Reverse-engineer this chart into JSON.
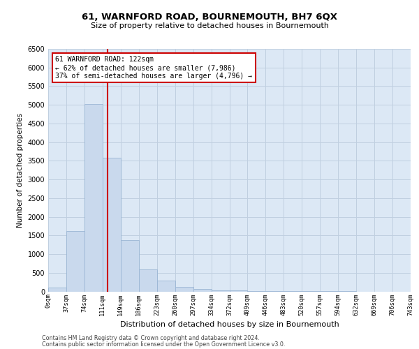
{
  "title_line1": "61, WARNFORD ROAD, BOURNEMOUTH, BH7 6QX",
  "title_line2": "Size of property relative to detached houses in Bournemouth",
  "xlabel": "Distribution of detached houses by size in Bournemouth",
  "ylabel": "Number of detached properties",
  "footer_line1": "Contains HM Land Registry data © Crown copyright and database right 2024.",
  "footer_line2": "Contains public sector information licensed under the Open Government Licence v3.0.",
  "bar_color": "#c9d9ed",
  "bar_edge_color": "#9ab5d4",
  "grid_color": "#c0cfe0",
  "background_color": "#dce8f5",
  "annotation_box_color": "#cc0000",
  "vline_color": "#cc0000",
  "property_size": 122,
  "annotation_text_line1": "61 WARNFORD ROAD: 122sqm",
  "annotation_text_line2": "← 62% of detached houses are smaller (7,986)",
  "annotation_text_line3": "37% of semi-detached houses are larger (4,796) →",
  "bin_labels": [
    "0sqm",
    "37sqm",
    "74sqm",
    "111sqm",
    "149sqm",
    "186sqm",
    "223sqm",
    "260sqm",
    "297sqm",
    "334sqm",
    "372sqm",
    "409sqm",
    "446sqm",
    "483sqm",
    "520sqm",
    "557sqm",
    "594sqm",
    "632sqm",
    "669sqm",
    "706sqm",
    "743sqm"
  ],
  "counts": [
    100,
    1620,
    5020,
    3580,
    1380,
    580,
    285,
    130,
    70,
    35,
    25,
    15,
    8,
    4,
    2,
    1,
    1,
    0,
    0,
    0
  ],
  "ylim": [
    0,
    6500
  ],
  "yticks": [
    0,
    500,
    1000,
    1500,
    2000,
    2500,
    3000,
    3500,
    4000,
    4500,
    5000,
    5500,
    6000,
    6500
  ]
}
